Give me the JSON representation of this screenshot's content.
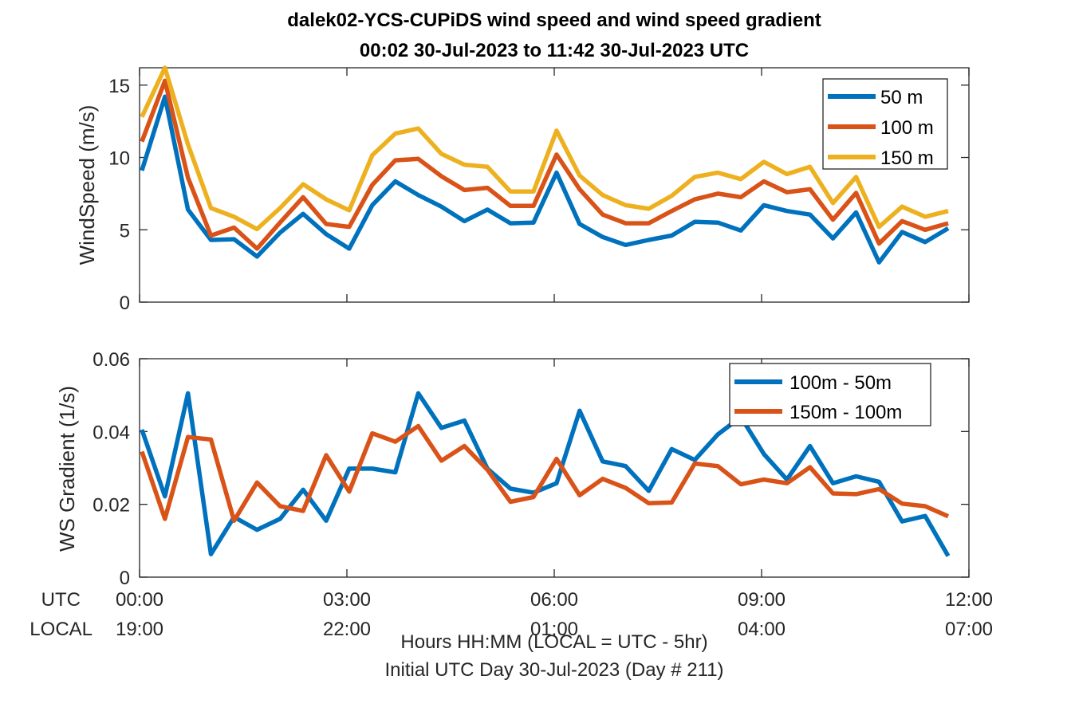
{
  "title_line1": "dalek02-YCS-CUPiDS  wind speed and wind speed gradient",
  "title_line2": "00:02 30-Jul-2023 to 11:42 30-Jul-2023  UTC",
  "row_labels": {
    "utc": "UTC",
    "local": "LOCAL"
  },
  "xlabel_line1": "Hours HH:MM  (LOCAL = UTC - 5hr)",
  "xlabel_line2": "Initial UTC Day 30-Jul-2023 (Day # 211)",
  "x_ticks": [
    {
      "hour": 0,
      "utc": "00:00",
      "local": "19:00"
    },
    {
      "hour": 3,
      "utc": "03:00",
      "local": "22:00"
    },
    {
      "hour": 6,
      "utc": "06:00",
      "local": "01:00"
    },
    {
      "hour": 9,
      "utc": "09:00",
      "local": "04:00"
    },
    {
      "hour": 12,
      "utc": "12:00",
      "local": "07:00"
    }
  ],
  "colors": {
    "blue": "#0072BD",
    "orange": "#D95319",
    "yellow": "#EDB120"
  },
  "chart_data": [
    {
      "type": "line",
      "ylabel": "WindSpeed (m/s)",
      "xlim": [
        0,
        12
      ],
      "ylim": [
        0,
        16.2
      ],
      "yticks": [
        {
          "value": 0,
          "label": "0"
        },
        {
          "value": 5,
          "label": "5"
        },
        {
          "value": 10,
          "label": "10"
        },
        {
          "value": 15,
          "label": "15"
        }
      ],
      "legend_position": "top-right",
      "x": [
        0.033,
        0.367,
        0.7,
        1.033,
        1.367,
        1.7,
        2.033,
        2.367,
        2.7,
        3.033,
        3.367,
        3.7,
        4.033,
        4.367,
        4.7,
        5.033,
        5.367,
        5.7,
        6.033,
        6.367,
        6.7,
        7.033,
        7.367,
        7.7,
        8.033,
        8.367,
        8.7,
        9.033,
        9.367,
        9.7,
        10.033,
        10.367,
        10.7,
        11.033,
        11.367,
        11.7
      ],
      "series": [
        {
          "name": "50 m",
          "color": "#0072BD",
          "values": [
            9.1,
            14.2,
            6.4,
            4.3,
            4.35,
            3.15,
            4.8,
            6.1,
            4.7,
            3.7,
            6.7,
            8.35,
            7.4,
            6.6,
            5.6,
            6.4,
            5.45,
            5.5,
            8.95,
            5.4,
            4.5,
            3.95,
            4.3,
            4.6,
            5.55,
            5.5,
            4.95,
            6.7,
            6.3,
            6.05,
            4.4,
            6.2,
            2.75,
            4.85,
            4.15,
            5.1
          ]
        },
        {
          "name": "100 m",
          "color": "#D95319",
          "values": [
            11.1,
            15.3,
            8.6,
            4.6,
            5.15,
            3.7,
            5.5,
            7.25,
            5.4,
            5.2,
            8.1,
            9.8,
            9.9,
            8.7,
            7.75,
            7.9,
            6.65,
            6.65,
            10.2,
            7.8,
            6.05,
            5.45,
            5.45,
            6.3,
            7.1,
            7.5,
            7.25,
            8.35,
            7.6,
            7.8,
            5.7,
            7.55,
            4.05,
            5.6,
            5.0,
            5.45
          ]
        },
        {
          "name": "150 m",
          "color": "#EDB120",
          "values": [
            12.8,
            16.2,
            10.9,
            6.5,
            5.9,
            5.05,
            6.5,
            8.15,
            7.1,
            6.35,
            10.15,
            11.65,
            12.0,
            10.25,
            9.5,
            9.35,
            7.65,
            7.65,
            11.85,
            8.75,
            7.4,
            6.7,
            6.45,
            7.35,
            8.65,
            8.95,
            8.5,
            9.7,
            8.85,
            9.35,
            6.85,
            8.65,
            5.2,
            6.6,
            5.9,
            6.3
          ]
        }
      ]
    },
    {
      "type": "line",
      "ylabel": "WS Gradient (1/s)",
      "xlim": [
        0,
        12
      ],
      "ylim": [
        0,
        0.06
      ],
      "yticks": [
        {
          "value": 0,
          "label": "0"
        },
        {
          "value": 0.02,
          "label": "0.02"
        },
        {
          "value": 0.04,
          "label": "0.04"
        },
        {
          "value": 0.06,
          "label": "0.06"
        }
      ],
      "legend_position": "top-right",
      "x": [
        0.033,
        0.367,
        0.7,
        1.033,
        1.367,
        1.7,
        2.033,
        2.367,
        2.7,
        3.033,
        3.367,
        3.7,
        4.033,
        4.367,
        4.7,
        5.033,
        5.367,
        5.7,
        6.033,
        6.367,
        6.7,
        7.033,
        7.367,
        7.7,
        8.033,
        8.367,
        8.7,
        9.033,
        9.367,
        9.7,
        10.033,
        10.367,
        10.7,
        11.033,
        11.367,
        11.7
      ],
      "series": [
        {
          "name": "100m - 50m",
          "color": "#0072BD",
          "values": [
            0.0405,
            0.0222,
            0.0505,
            0.0063,
            0.0165,
            0.013,
            0.016,
            0.024,
            0.0155,
            0.0298,
            0.0298,
            0.0288,
            0.0505,
            0.041,
            0.043,
            0.0298,
            0.0243,
            0.0232,
            0.0258,
            0.0457,
            0.0318,
            0.0305,
            0.0237,
            0.0352,
            0.0322,
            0.0392,
            0.044,
            0.0338,
            0.0268,
            0.036,
            0.0258,
            0.0277,
            0.0262,
            0.0153,
            0.0168,
            0.0058
          ]
        },
        {
          "name": "150m - 100m",
          "color": "#D95319",
          "values": [
            0.0345,
            0.016,
            0.0385,
            0.0378,
            0.0155,
            0.026,
            0.0195,
            0.0182,
            0.0335,
            0.0235,
            0.0395,
            0.0372,
            0.0415,
            0.032,
            0.036,
            0.0295,
            0.0207,
            0.022,
            0.0325,
            0.0225,
            0.027,
            0.0245,
            0.0203,
            0.0205,
            0.0312,
            0.0305,
            0.0255,
            0.0268,
            0.0258,
            0.0302,
            0.023,
            0.0228,
            0.0242,
            0.0202,
            0.0195,
            0.0167
          ]
        }
      ]
    }
  ]
}
